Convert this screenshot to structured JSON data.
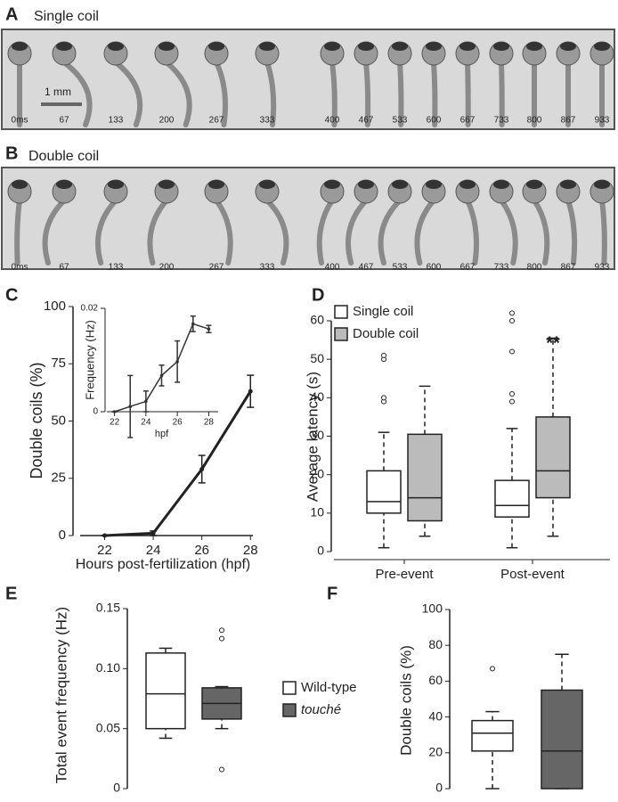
{
  "strips": [
    {
      "panel": "A",
      "title": "Single coil",
      "scale_bar": "1 mm",
      "frames": [
        "0ms",
        "67",
        "133",
        "200",
        "267",
        "333",
        "400",
        "467",
        "533",
        "600",
        "667",
        "733",
        "800",
        "867",
        "933"
      ]
    },
    {
      "panel": "B",
      "title": "Double coil",
      "frames": [
        "0ms",
        "67",
        "133",
        "200",
        "267",
        "333",
        "400",
        "467",
        "533",
        "600",
        "667",
        "733",
        "800",
        "867",
        "933"
      ]
    }
  ],
  "chart_data": [
    {
      "type": "line",
      "panel": "C",
      "y_label": "Double coils  (%)",
      "x_label": "Hours post-fertilization (hpf)",
      "x": [
        22,
        24,
        26,
        28
      ],
      "values": [
        0,
        1,
        29,
        63
      ],
      "errors": [
        0,
        1,
        6,
        7
      ],
      "color": "#222",
      "xlim": [
        20.7,
        28.1
      ],
      "xticks": [
        22,
        24,
        26,
        28
      ],
      "ylim": [
        0,
        100
      ],
      "yticks": [
        0,
        25,
        50,
        75,
        100
      ]
    },
    {
      "type": "line",
      "y_label": "Frequency (Hz)",
      "x_label": "hpf",
      "x": [
        22,
        23,
        24,
        25,
        26,
        27,
        28
      ],
      "values": [
        0,
        0.001,
        0.002,
        0.007,
        0.0097,
        0.017,
        0.016
      ],
      "errors": [
        0,
        0.006,
        0.002,
        0.002,
        0.004,
        0.0015,
        0.0007
      ],
      "color": "#333",
      "xlim": [
        21.4,
        28.6
      ],
      "xticks": [
        22,
        24,
        26,
        28
      ],
      "ylim": [
        0,
        0.02
      ],
      "yticks": [
        0,
        0.02
      ]
    },
    {
      "type": "box",
      "panel": "D",
      "y_label": "Average latency (s)",
      "categories": [
        "Pre-event",
        "Post-event"
      ],
      "annotation": "**",
      "ylim": [
        0,
        60
      ],
      "yticks": [
        0,
        10,
        20,
        30,
        40,
        50,
        60
      ],
      "legend": "upper left",
      "series": [
        {
          "name": "Single coil",
          "color": "#ffffff",
          "whisker_low": [
            1,
            1
          ],
          "q1": [
            10,
            9
          ],
          "median": [
            13,
            12
          ],
          "q3": [
            21,
            18.5
          ],
          "whisker_high": [
            31,
            32
          ],
          "outliers": [
            [
              39,
              40,
              50,
              51
            ],
            [
              39,
              41,
              52,
              60,
              62
            ]
          ]
        },
        {
          "name": "Double coil",
          "color": "#bbbbbb",
          "whisker_low": [
            4,
            4
          ],
          "q1": [
            8,
            14
          ],
          "median": [
            14,
            21
          ],
          "q3": [
            30.5,
            35
          ],
          "whisker_high": [
            43,
            55.5
          ],
          "outliers": [
            [],
            []
          ]
        }
      ]
    },
    {
      "type": "box",
      "panel": "E",
      "y_label": "Total event frequency (Hz)",
      "ylim": [
        0,
        0.15
      ],
      "yticks": [
        0,
        0.05,
        {
          "value": 0.1,
          "label": "0.10"
        },
        0.15
      ],
      "legend": "right",
      "series": [
        {
          "name": "Wild-type",
          "color": "#ffffff",
          "whisker_low": [
            0.042
          ],
          "q1": [
            0.05
          ],
          "median": [
            0.079
          ],
          "q3": [
            0.113
          ],
          "whisker_high": [
            0.117
          ],
          "outliers": [
            []
          ]
        },
        {
          "name": "touché",
          "color": "#666666",
          "whisker_low": [
            0.05
          ],
          "q1": [
            0.058
          ],
          "median": [
            0.071
          ],
          "q3": [
            0.084
          ],
          "whisker_high": [
            0.085
          ],
          "outliers": [
            [
              0.016,
              0.125,
              0.132
            ]
          ]
        }
      ]
    },
    {
      "type": "box",
      "panel": "F",
      "y_label": "Double coils (%)",
      "ylim": [
        0,
        100
      ],
      "yticks": [
        0,
        20,
        40,
        60,
        80,
        100
      ],
      "series": [
        {
          "color": "#ffffff",
          "whisker_low": [
            0
          ],
          "q1": [
            21
          ],
          "median": [
            31
          ],
          "q3": [
            38
          ],
          "whisker_high": [
            43
          ],
          "outliers": [
            [
              67
            ]
          ]
        },
        {
          "color": "#666666",
          "whisker_low": [
            0
          ],
          "q1": [
            0
          ],
          "median": [
            21
          ],
          "q3": [
            55
          ],
          "whisker_high": [
            75
          ],
          "outliers": [
            []
          ]
        }
      ]
    }
  ]
}
